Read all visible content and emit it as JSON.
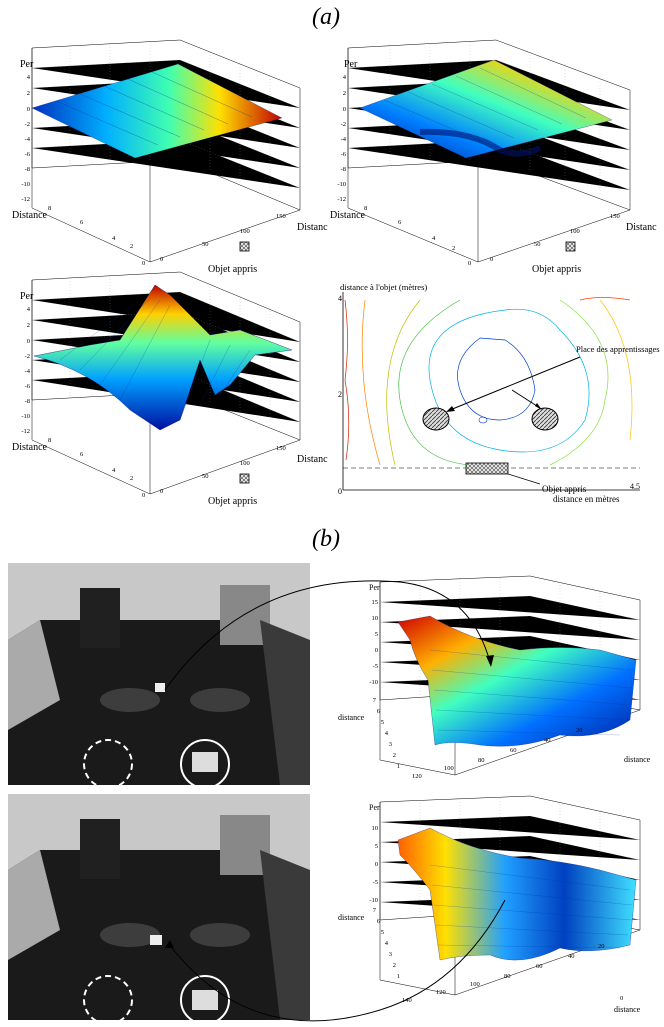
{
  "figure": {
    "label_a": "(a)",
    "label_b": "(b)"
  },
  "plots_a": {
    "per_label": "Per",
    "distance_label": "Distance",
    "distance_label_trunc": "Distanc",
    "objet_label": "Objet appris",
    "z_ticks": [
      "4",
      "2",
      "0",
      "-2",
      "-4",
      "-6",
      "-8",
      "-10",
      "-12"
    ],
    "dist_ticks": [
      "8",
      "6",
      "4",
      "2",
      "0"
    ],
    "obj_ticks": [
      "0",
      "50",
      "100",
      "150"
    ]
  },
  "contour": {
    "ylabel": "distance à l'objet (mètres)",
    "y_top": "4",
    "y_mid": "2",
    "y_zero": "0",
    "x_end": "4.5",
    "xlabel": "distance en mètres",
    "annot_learning": "Place des apprentissages",
    "annot_object": "Objet appris"
  },
  "plots_b": {
    "per_label": "Per",
    "distance_label": "distance",
    "distance_x_label": "distance",
    "z_ticks": [
      "15",
      "10",
      "5",
      "0",
      "-5",
      "-10"
    ],
    "z_ticks2": [
      "10",
      "5",
      "0",
      "-5",
      "-10"
    ],
    "dist_ticks": [
      "7",
      "6",
      "5",
      "4",
      "3",
      "2",
      "1"
    ],
    "x_ticks": [
      "140",
      "120",
      "100",
      "80",
      "60",
      "40",
      "20",
      "0"
    ]
  }
}
